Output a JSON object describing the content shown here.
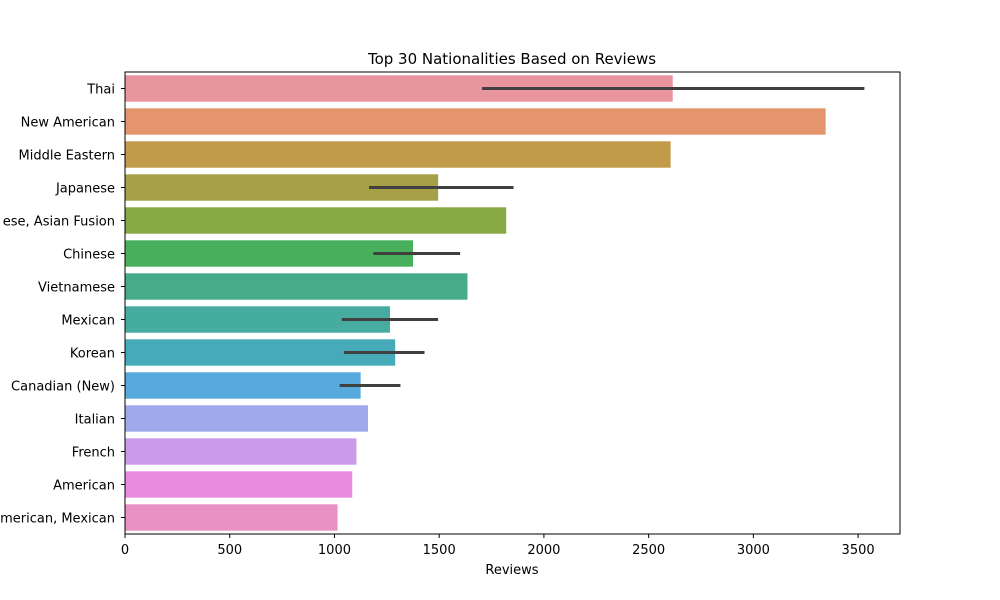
{
  "chart_data": {
    "type": "bar",
    "orientation": "horizontal",
    "title": "Top 30 Nationalities Based on Reviews",
    "xlabel": "Reviews",
    "ylabel": "",
    "xlim": [
      0,
      3700
    ],
    "xticks": [
      0,
      500,
      1000,
      1500,
      2000,
      2500,
      3000,
      3500
    ],
    "grid": false,
    "legend": "none",
    "categories": [
      "Thai",
      "New American",
      "Middle Eastern",
      "Japanese",
      "ese, Asian Fusion",
      "Chinese",
      "Vietnamese",
      "Mexican",
      "Korean",
      "Canadian (New)",
      "Italian",
      "French",
      "American",
      "merican, Mexican"
    ],
    "values": [
      2615,
      3345,
      2605,
      1495,
      1820,
      1375,
      1635,
      1265,
      1290,
      1125,
      1160,
      1105,
      1085,
      1015
    ],
    "error_bars": [
      [
        1705,
        3530
      ],
      null,
      null,
      [
        1165,
        1855
      ],
      null,
      [
        1185,
        1600
      ],
      null,
      [
        1035,
        1495
      ],
      [
        1045,
        1430
      ],
      [
        1025,
        1315
      ],
      null,
      null,
      null,
      null
    ],
    "colors": [
      "#e8959d",
      "#e5956b",
      "#c19a4a",
      "#a6a046",
      "#88a944",
      "#48b05d",
      "#45ab89",
      "#45ac9f",
      "#47aab8",
      "#55a9dc",
      "#a0a9ec",
      "#c99be8",
      "#e98be1",
      "#e891c2"
    ],
    "error_color": "#404040"
  }
}
